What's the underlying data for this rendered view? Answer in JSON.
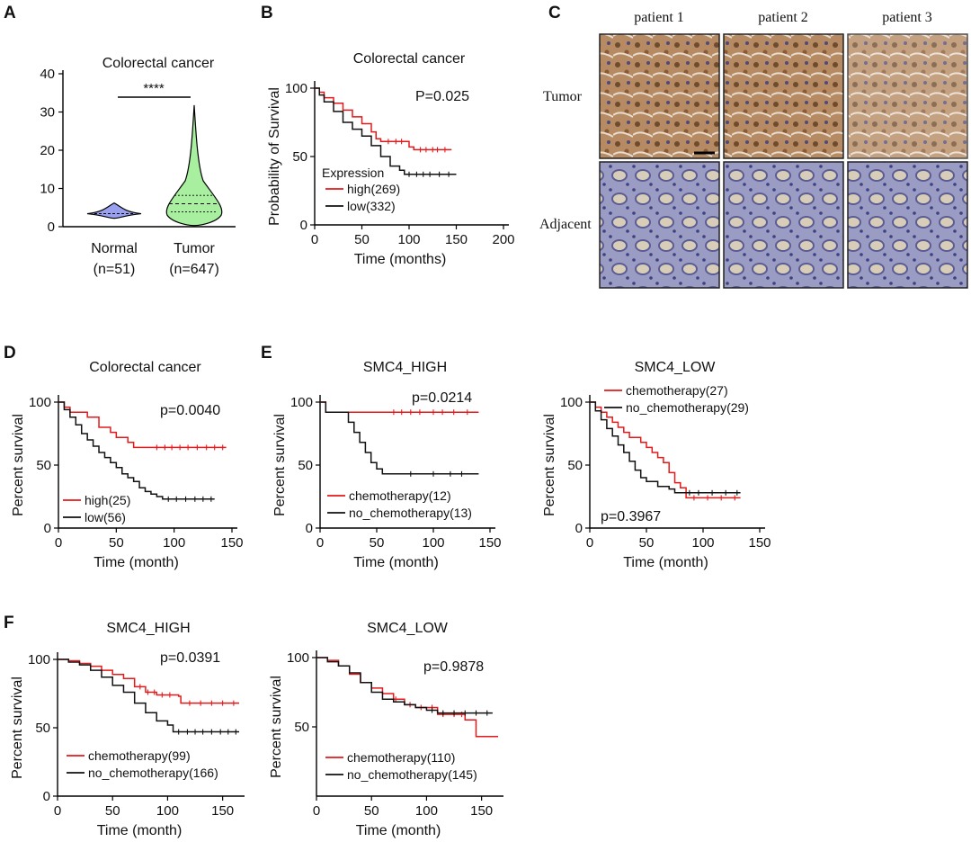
{
  "colors": {
    "high": "#e31a1c",
    "low": "#111111",
    "normal_fill": "#9aa0f0",
    "tumor_fill": "#a8f0a0",
    "stain_blue": "#8a8fb8",
    "stain_brown": "#9a6a3a"
  },
  "panel_labels": {
    "A": "A",
    "B": "B",
    "C": "C",
    "D": "D",
    "E": "E",
    "F": "F"
  },
  "histology": {
    "patients": [
      "patient 1",
      "patient 2",
      "patient 3"
    ],
    "rows": [
      "Tumor",
      "Adjacent"
    ]
  },
  "chart_data": [
    {
      "id": "A",
      "type": "violin",
      "title": "Colorectal cancer",
      "categories": [
        "Normal",
        "Tumor"
      ],
      "category_sublabels": [
        "(n=51)",
        "(n=647)"
      ],
      "yticks": [
        "0",
        "10",
        "20",
        "30",
        "40"
      ],
      "ylim": [
        0,
        40
      ],
      "significance": "****",
      "groups": [
        {
          "name": "Normal",
          "median": 3.4,
          "q1": 3.0,
          "q3": 3.8,
          "min": 2.2,
          "max": 6.2
        },
        {
          "name": "Tumor",
          "median": 6.0,
          "q1": 3.9,
          "q3": 8.2,
          "min": 0.3,
          "max": 31.8
        }
      ]
    },
    {
      "id": "B",
      "type": "line",
      "title": "Colorectal cancer",
      "ylabel": "Probability of Survival",
      "xlabel": "Time (months)",
      "xticks": [
        "0",
        "50",
        "100",
        "150",
        "200"
      ],
      "yticks": [
        "0",
        "50",
        "100"
      ],
      "xlim": [
        0,
        200
      ],
      "ylim": [
        0,
        100
      ],
      "pvalue": "P=0.025",
      "legend_title": "Expression",
      "series": [
        {
          "name": "high(269)",
          "color": "#e31a1c",
          "points": [
            [
              0,
              100
            ],
            [
              5,
              97
            ],
            [
              10,
              93
            ],
            [
              20,
              89
            ],
            [
              30,
              84
            ],
            [
              40,
              79
            ],
            [
              50,
              74
            ],
            [
              60,
              68
            ],
            [
              65,
              63
            ],
            [
              70,
              61
            ],
            [
              100,
              57
            ],
            [
              105,
              55
            ],
            [
              145,
              55
            ]
          ],
          "censor": [
            78,
            86,
            92,
            112,
            118,
            125,
            130,
            138
          ]
        },
        {
          "name": "low(332)",
          "color": "#111111",
          "points": [
            [
              0,
              100
            ],
            [
              5,
              95
            ],
            [
              10,
              90
            ],
            [
              20,
              83
            ],
            [
              30,
              75
            ],
            [
              40,
              70
            ],
            [
              50,
              65
            ],
            [
              60,
              58
            ],
            [
              70,
              50
            ],
            [
              80,
              43
            ],
            [
              90,
              40
            ],
            [
              95,
              37
            ],
            [
              150,
              37
            ]
          ],
          "censor": [
            100,
            108,
            115,
            122,
            132,
            142
          ]
        }
      ]
    },
    {
      "id": "D",
      "type": "line",
      "title": "Colorectal cancer",
      "ylabel": "Percent survival",
      "xlabel": "Time (month)",
      "xticks": [
        "0",
        "50",
        "100",
        "150"
      ],
      "yticks": [
        "0",
        "50",
        "100"
      ],
      "xlim": [
        0,
        150
      ],
      "ylim": [
        0,
        100
      ],
      "pvalue": "p=0.0040",
      "series": [
        {
          "name": "high(25)",
          "color": "#e31a1c",
          "points": [
            [
              0,
              100
            ],
            [
              5,
              96
            ],
            [
              10,
              92
            ],
            [
              25,
              88
            ],
            [
              35,
              80
            ],
            [
              45,
              76
            ],
            [
              50,
              72
            ],
            [
              60,
              68
            ],
            [
              65,
              64
            ],
            [
              145,
              64
            ]
          ],
          "censor": [
            85,
            92,
            98,
            105,
            112,
            120,
            128,
            135,
            142
          ]
        },
        {
          "name": "low(56)",
          "color": "#111111",
          "points": [
            [
              0,
              100
            ],
            [
              5,
              94
            ],
            [
              10,
              88
            ],
            [
              15,
              82
            ],
            [
              20,
              75
            ],
            [
              25,
              70
            ],
            [
              30,
              65
            ],
            [
              35,
              60
            ],
            [
              40,
              56
            ],
            [
              45,
              52
            ],
            [
              50,
              48
            ],
            [
              55,
              43
            ],
            [
              60,
              40
            ],
            [
              65,
              37
            ],
            [
              70,
              32
            ],
            [
              75,
              29
            ],
            [
              80,
              27
            ],
            [
              85,
              25
            ],
            [
              90,
              23
            ],
            [
              135,
              23
            ]
          ],
          "censor": [
            95,
            102,
            110,
            118,
            125,
            132
          ]
        }
      ]
    },
    {
      "id": "E1",
      "type": "line",
      "title": "SMC4_HIGH",
      "ylabel": "Percent survival",
      "xlabel": "Time (month)",
      "xticks": [
        "0",
        "50",
        "100",
        "150"
      ],
      "yticks": [
        "0",
        "50",
        "100"
      ],
      "xlim": [
        0,
        150
      ],
      "ylim": [
        0,
        100
      ],
      "pvalue": "p=0.0214",
      "series": [
        {
          "name": "chemotherapy(12)",
          "color": "#e31a1c",
          "points": [
            [
              0,
              100
            ],
            [
              5,
              92
            ],
            [
              140,
              92
            ]
          ],
          "censor": [
            65,
            72,
            80,
            88,
            100,
            108,
            118,
            130
          ]
        },
        {
          "name": "no_chemotherapy(13)",
          "color": "#111111",
          "points": [
            [
              0,
              100
            ],
            [
              5,
              92
            ],
            [
              20,
              92
            ],
            [
              25,
              84
            ],
            [
              30,
              76
            ],
            [
              35,
              68
            ],
            [
              40,
              60
            ],
            [
              45,
              52
            ],
            [
              50,
              47
            ],
            [
              55,
              43
            ],
            [
              140,
              43
            ]
          ],
          "censor": [
            80,
            100,
            115,
            125
          ]
        }
      ]
    },
    {
      "id": "E2",
      "type": "line",
      "title": "SMC4_LOW",
      "ylabel": "Percent survival",
      "xlabel": "Time (month)",
      "xticks": [
        "0",
        "50",
        "100",
        "150"
      ],
      "yticks": [
        "0",
        "50",
        "100"
      ],
      "xlim": [
        0,
        150
      ],
      "ylim": [
        0,
        100
      ],
      "pvalue": "p=0.3967",
      "series": [
        {
          "name": "chemotherapy(27)",
          "color": "#e31a1c",
          "points": [
            [
              0,
              100
            ],
            [
              5,
              96
            ],
            [
              10,
              92
            ],
            [
              15,
              88
            ],
            [
              20,
              84
            ],
            [
              25,
              80
            ],
            [
              30,
              76
            ],
            [
              35,
              72
            ],
            [
              45,
              68
            ],
            [
              50,
              64
            ],
            [
              55,
              60
            ],
            [
              60,
              56
            ],
            [
              65,
              52
            ],
            [
              70,
              44
            ],
            [
              75,
              36
            ],
            [
              80,
              32
            ],
            [
              85,
              24
            ],
            [
              133,
              24
            ]
          ],
          "censor": [
            92,
            104,
            116,
            128
          ]
        },
        {
          "name": "no_chemotherapy(29)",
          "color": "#111111",
          "points": [
            [
              0,
              100
            ],
            [
              5,
              93
            ],
            [
              10,
              86
            ],
            [
              15,
              79
            ],
            [
              20,
              73
            ],
            [
              25,
              66
            ],
            [
              30,
              60
            ],
            [
              35,
              53
            ],
            [
              40,
              46
            ],
            [
              45,
              40
            ],
            [
              50,
              37
            ],
            [
              60,
              33
            ],
            [
              70,
              31
            ],
            [
              75,
              28
            ],
            [
              133,
              28
            ]
          ],
          "censor": [
            88,
            96,
            108,
            120,
            130
          ]
        }
      ]
    },
    {
      "id": "F1",
      "type": "line",
      "title": "SMC4_HIGH",
      "ylabel": "Percent survival",
      "xlabel": "Time (month)",
      "xticks": [
        "0",
        "50",
        "100",
        "150"
      ],
      "yticks": [
        "0",
        "50",
        "100"
      ],
      "xlim": [
        0,
        165
      ],
      "ylim": [
        0,
        100
      ],
      "pvalue": "p=0.0391",
      "series": [
        {
          "name": "chemotherapy(99)",
          "color": "#e31a1c",
          "points": [
            [
              0,
              100
            ],
            [
              10,
              99
            ],
            [
              20,
              97
            ],
            [
              30,
              95
            ],
            [
              40,
              92
            ],
            [
              50,
              89
            ],
            [
              60,
              86
            ],
            [
              70,
              80
            ],
            [
              80,
              76
            ],
            [
              90,
              74
            ],
            [
              110,
              73
            ],
            [
              112,
              68
            ],
            [
              165,
              68
            ]
          ],
          "censor": [
            75,
            82,
            88,
            95,
            102,
            120,
            130,
            140,
            150,
            160
          ]
        },
        {
          "name": "no_chemotherapy(166)",
          "color": "#111111",
          "points": [
            [
              0,
              100
            ],
            [
              10,
              98
            ],
            [
              20,
              96
            ],
            [
              30,
              92
            ],
            [
              40,
              87
            ],
            [
              50,
              81
            ],
            [
              60,
              76
            ],
            [
              70,
              68
            ],
            [
              80,
              61
            ],
            [
              90,
              55
            ],
            [
              100,
              52
            ],
            [
              105,
              47
            ],
            [
              165,
              47
            ]
          ],
          "censor": [
            110,
            118,
            125,
            132,
            140,
            148,
            155,
            162
          ]
        }
      ]
    },
    {
      "id": "F2",
      "type": "line",
      "title": "SMC4_LOW",
      "ylabel": "Percent survival",
      "xlabel": "Time (month)",
      "xticks": [
        "0",
        "50",
        "100",
        "150"
      ],
      "yticks": [
        "50",
        "100"
      ],
      "xlim": [
        0,
        165
      ],
      "ylim": [
        0,
        100
      ],
      "pvalue": "p=0.9878",
      "series": [
        {
          "name": "chemotherapy(110)",
          "color": "#e31a1c",
          "points": [
            [
              0,
              100
            ],
            [
              10,
              98
            ],
            [
              20,
              94
            ],
            [
              30,
              88
            ],
            [
              40,
              82
            ],
            [
              50,
              78
            ],
            [
              60,
              74
            ],
            [
              70,
              70
            ],
            [
              80,
              66
            ],
            [
              90,
              64
            ],
            [
              110,
              59
            ],
            [
              135,
              55
            ],
            [
              145,
              43
            ],
            [
              165,
              43
            ]
          ],
          "censor": [
            72,
            85,
            95,
            105,
            115,
            125,
            132
          ]
        },
        {
          "name": "no_chemotherapy(145)",
          "color": "#111111",
          "points": [
            [
              0,
              100
            ],
            [
              10,
              97
            ],
            [
              20,
              94
            ],
            [
              30,
              89
            ],
            [
              40,
              82
            ],
            [
              50,
              75
            ],
            [
              60,
              70
            ],
            [
              70,
              68
            ],
            [
              80,
              66
            ],
            [
              90,
              64
            ],
            [
              100,
              62
            ],
            [
              110,
              60
            ],
            [
              160,
              60
            ]
          ],
          "censor": [
            105,
            115,
            125,
            135,
            145,
            155
          ]
        }
      ]
    }
  ]
}
